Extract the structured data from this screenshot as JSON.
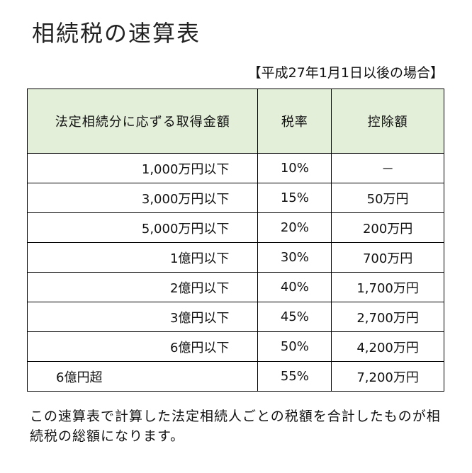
{
  "title": "相続税の速算表",
  "subtitle": "【平成27年1月1日以後の場合】",
  "table": {
    "headers": [
      "法定相続分に応ずる取得金額",
      "税率",
      "控除額"
    ],
    "rows": [
      {
        "amount": "1,000万円以下",
        "rate": "10%",
        "deduction": "－"
      },
      {
        "amount": "3,000万円以下",
        "rate": "15%",
        "deduction": "50万円"
      },
      {
        "amount": "5,000万円以下",
        "rate": "20%",
        "deduction": "200万円"
      },
      {
        "amount": "1億円以下",
        "rate": "30%",
        "deduction": "700万円"
      },
      {
        "amount": "2億円以下",
        "rate": "40%",
        "deduction": "1,700万円"
      },
      {
        "amount": "3億円以下",
        "rate": "45%",
        "deduction": "2,700万円"
      },
      {
        "amount": "6億円以下",
        "rate": "50%",
        "deduction": "4,200万円"
      },
      {
        "amount": "6億円超",
        "rate": "55%",
        "deduction": "7,200万円"
      }
    ]
  },
  "note": "この速算表で計算した法定相続人ごとの税額を合計したものが相続税の総額になります。"
}
